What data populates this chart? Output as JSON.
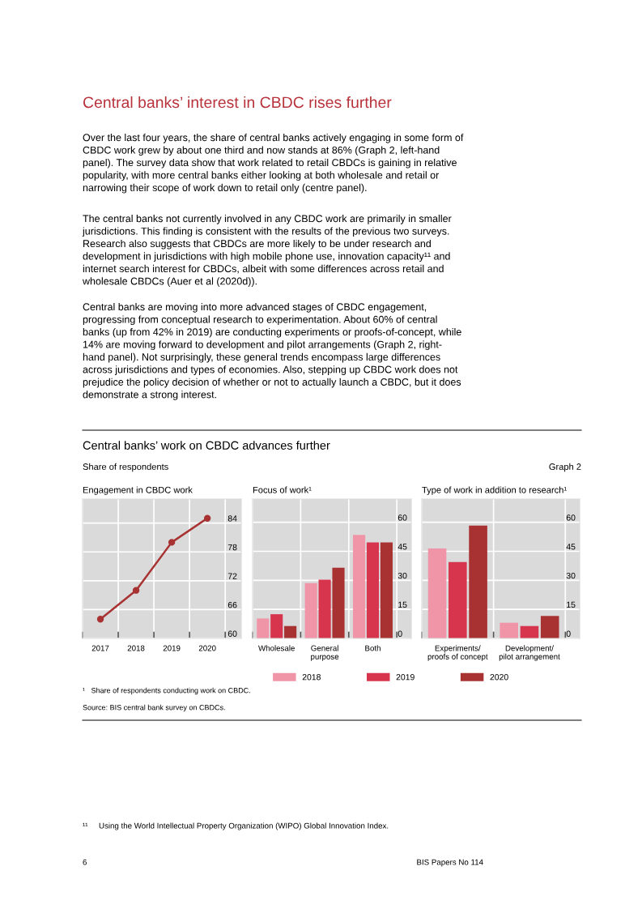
{
  "chart_data": [
    {
      "type": "other",
      "title": "Central banks’ interest in CBDC rises further",
      "annotations": [
        "Over the last four years, the share of central banks actively engaging in some form of\nCBDC work grew by about one third and now stands at 86% (Graph 2, left-hand\npanel). The survey data show that work related to retail CBDCs is gaining in relative\npopularity, with more central banks either looking at both wholesale and retail or\nnarrowing their scope of work down to retail only (centre panel).",
        "The central banks not currently involved in any CBDC work are primarily in smaller\njurisdictions. This finding is consistent with the results of the previous two surveys.\nResearch also suggests that CBDCs are more likely to be under research and\ndevelopment in jurisdictions with high mobile phone use, innovation capacity¹¹ and\ninternet search interest for CBDCs, albeit with some differences across retail and\nwholesale CBDCs (Auer et al (2020d)).",
        "Central banks are moving into more advanced stages of CBDC engagement,\nprogressing from conceptual research to experimentation. About 60% of central\nbanks (up from 42% in 2019) are conducting experiments or proofs-of-concept, while\n14% are moving forward to development and pilot arrangements (Graph 2, right-\nhand panel). Not surprisingly, these general trends encompass large differences\nacross jurisdictions and types of economies. Also, stepping up CBDC work does not\nprejudice the policy decision of whether or not to actually launch a CBDC, but it does\ndemonstrate a strong interest.",
        "¹¹     Using the World Intellectual Property Organization (WIPO) Global Innovation Index.",
        "6",
        "BIS Papers No 114"
      ]
    },
    {
      "type": "other",
      "title": "Central banks’ work on CBDC advances further",
      "subtitle": "Share of respondents",
      "annotations": [
        "Graph 2",
        "¹   Share of respondents conducting work on CBDC.",
        "Source: BIS central bank survey on CBDCs."
      ]
    },
    {
      "type": "line",
      "title": "Engagement in CBDC work",
      "categories": [
        "2017",
        "2018",
        "2019",
        "2020"
      ],
      "series": [
        {
          "color": "#a83232",
          "values": [
            64,
            70,
            80,
            85
          ]
        }
      ],
      "ylim": [
        60,
        89
      ],
      "yticks": [
        60,
        66,
        72,
        78,
        84
      ],
      "grid": true,
      "marker": "circle"
    },
    {
      "type": "bar",
      "title": "Focus of work¹",
      "categories": [
        "Wholesale",
        "General\npurpose",
        "Both"
      ],
      "series": [
        {
          "name": "2018",
          "color": "#f095a8",
          "values": [
            10.3,
            28.6,
            53.5
          ]
        },
        {
          "name": "2019",
          "color": "#d7354d",
          "values": [
            12.5,
            30.4,
            49.6
          ]
        },
        {
          "name": "2020",
          "color": "#a83232",
          "values": [
            6.4,
            36.5,
            49.6
          ]
        }
      ],
      "ylim": [
        0,
        72
      ],
      "yticks": [
        0,
        15,
        30,
        45,
        60
      ],
      "grid": true,
      "legend": "bottom"
    },
    {
      "type": "bar",
      "title": "Type of work in addition to research¹",
      "categories": [
        "Experiments/\nproofs of concept",
        "Development/\npilot arrangement"
      ],
      "series": [
        {
          "name": "2018",
          "color": "#f095a8",
          "values": [
            46.5,
            8.1
          ]
        },
        {
          "name": "2019",
          "color": "#d7354d",
          "values": [
            39.5,
            6.4
          ]
        },
        {
          "name": "2020",
          "color": "#a83232",
          "values": [
            58.3,
            11.6
          ]
        }
      ],
      "ylim": [
        0,
        72
      ],
      "yticks": [
        0,
        15,
        30,
        45,
        60
      ],
      "grid": true
    }
  ]
}
